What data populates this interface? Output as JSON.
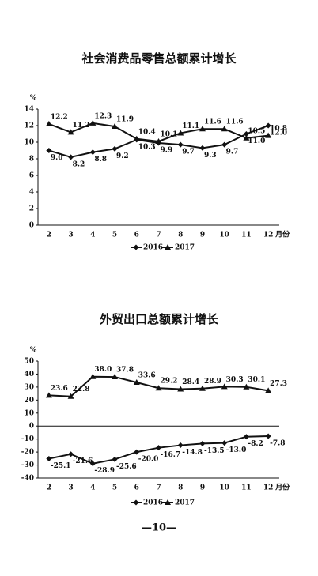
{
  "chart_data": [
    {
      "type": "line",
      "title": "社会消费品零售总额累计增长",
      "y_label": "%",
      "x_label": "月份",
      "categories": [
        "2",
        "3",
        "4",
        "5",
        "6",
        "7",
        "8",
        "9",
        "10",
        "11",
        "12"
      ],
      "ylim": [
        0,
        14
      ],
      "yticks": [
        0,
        2,
        4,
        6,
        8,
        10,
        12,
        14
      ],
      "grid": false,
      "series": [
        {
          "name": "2016",
          "color": "#111111",
          "marker": "diamond",
          "values": [
            9.0,
            8.2,
            8.8,
            9.2,
            10.3,
            9.9,
            9.7,
            9.3,
            9.7,
            11.0,
            12.0
          ],
          "value_labels": [
            "9.0",
            "8.2",
            "8.8",
            "9.2",
            "10.3",
            "9.9",
            "9.7",
            "9.3",
            "9.7",
            "11.0",
            "12.0"
          ]
        },
        {
          "name": "2017",
          "color": "#111111",
          "marker": "triangle",
          "values": [
            12.2,
            11.2,
            12.3,
            11.9,
            10.4,
            10.1,
            11.1,
            11.6,
            11.6,
            10.5,
            10.8
          ],
          "value_labels": [
            "12.2",
            "11.2",
            "12.3",
            "11.9",
            "10.4",
            "10.1",
            "11.1",
            "11.6",
            "11.6",
            "10.5",
            "10.8"
          ]
        }
      ]
    },
    {
      "type": "line",
      "title": "外贸出口总额累计增长",
      "y_label": "%",
      "x_label": "月份",
      "categories": [
        "2",
        "3",
        "4",
        "5",
        "6",
        "7",
        "8",
        "9",
        "10",
        "11",
        "12"
      ],
      "ylim": [
        -40,
        50
      ],
      "yticks": [
        -40,
        -30,
        -20,
        -10,
        0,
        10,
        20,
        30,
        40,
        50
      ],
      "grid": false,
      "series": [
        {
          "name": "2016",
          "color": "#111111",
          "marker": "diamond",
          "values": [
            -25.1,
            -21.6,
            -28.9,
            -25.6,
            -20.0,
            -16.7,
            -14.8,
            -13.5,
            -13.0,
            -8.2,
            -7.8
          ],
          "value_labels": [
            "-25.1",
            "-21.6",
            "-28.9",
            "-25.6",
            "-20.0",
            "-16.7",
            "-14.8",
            "-13.5",
            "-13.0",
            "-8.2",
            "-7.8"
          ]
        },
        {
          "name": "2017",
          "color": "#111111",
          "marker": "triangle",
          "values": [
            23.6,
            22.8,
            38.0,
            37.8,
            33.6,
            29.2,
            28.4,
            28.9,
            30.3,
            30.1,
            27.3
          ],
          "value_labels": [
            "23.6",
            "22.8",
            "38.0",
            "37.8",
            "33.6",
            "29.2",
            "28.4",
            "28.9",
            "30.3",
            "30.1",
            "27.3"
          ]
        }
      ]
    }
  ],
  "page_number": "—10—"
}
